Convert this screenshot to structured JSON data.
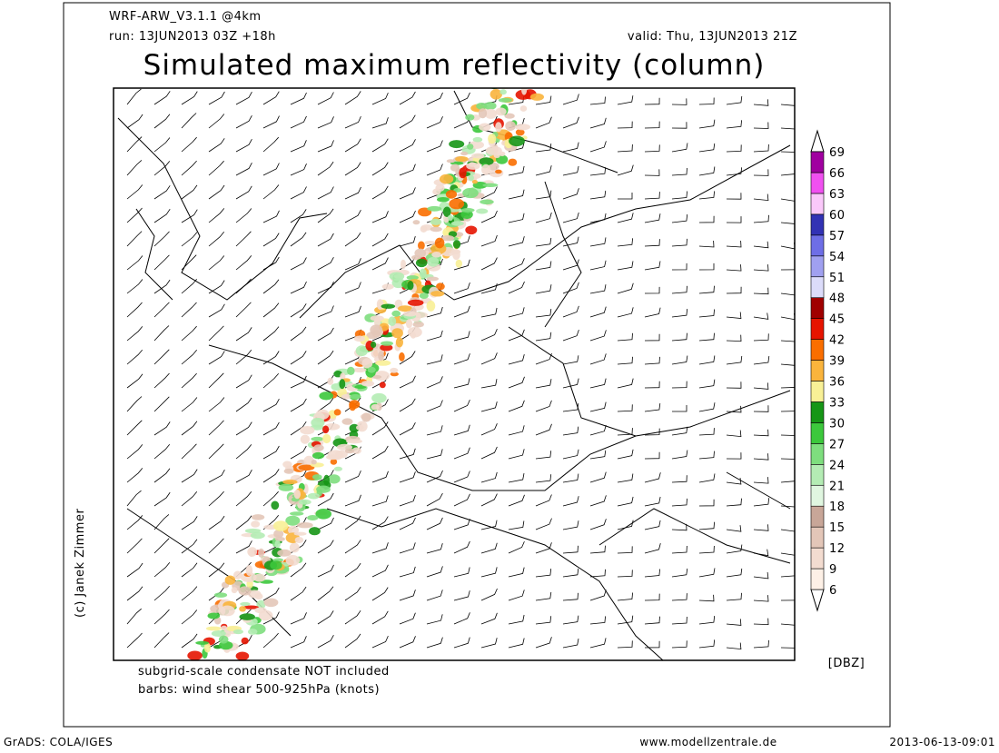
{
  "header": {
    "model": "WRF-ARW_V3.1.1 @4km",
    "run": "run: 13JUN2013 03Z +18h",
    "valid": "valid: Thu, 13JUN2013 21Z",
    "title": "Simulated maximum reflectivity (column)"
  },
  "notes": [
    "subgrid-scale condensate NOT included",
    "barbs: wind shear 500-925hPa (knots)"
  ],
  "copyright": "(c) Janek Zimmer",
  "colorbar": {
    "unit": "[DBZ]",
    "levels": [
      6,
      9,
      12,
      15,
      18,
      21,
      24,
      27,
      30,
      33,
      36,
      39,
      42,
      45,
      48,
      51,
      54,
      57,
      60,
      63,
      66,
      69
    ],
    "colors": [
      "#fdf0e6",
      "#f3dcd0",
      "#e3c6b8",
      "#c8a698",
      "#e0f6e0",
      "#b4ecb4",
      "#7ede7e",
      "#3cc83c",
      "#169616",
      "#f8f096",
      "#fab43c",
      "#fa6e00",
      "#e61400",
      "#a00000",
      "#dcdcfa",
      "#a0a0f0",
      "#6e6ee6",
      "#3232b4",
      "#fac8fa",
      "#f050f0",
      "#a000a0"
    ]
  },
  "footer": {
    "left": "GrADS: COLA/IGES",
    "center": "www.modellzentrale.de",
    "right": "2013-06-13-09:01"
  }
}
